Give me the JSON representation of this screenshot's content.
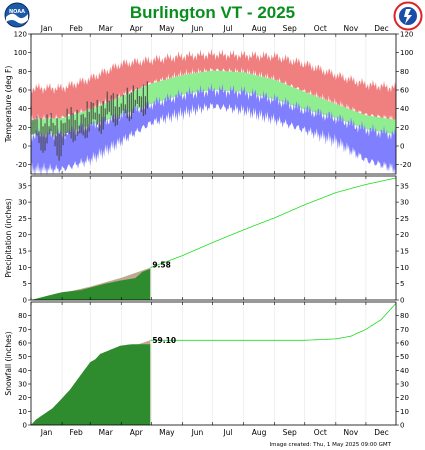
{
  "title": "Burlington VT - 2025",
  "footer": "Image created: Thu, 1 May 2025 09:00 GMT",
  "logos": [
    {
      "name": "noaa-logo",
      "text": "NOAA"
    },
    {
      "name": "nws-logo",
      "text": "NATIONAL WEATHER SERVICE"
    }
  ],
  "colors": {
    "record_high_band": "#f08080",
    "normal_band": "#90ee90",
    "record_low_band": "#8080ff",
    "observed": "#404040",
    "observed_total": "#2e8b2e",
    "normal_accum": "#c0a890",
    "normal_accum_line": "#22dd22",
    "title": "#0a8f1f"
  },
  "months": [
    "Jan",
    "Feb",
    "Mar",
    "Apr",
    "May",
    "Jun",
    "Jul",
    "Aug",
    "Sep",
    "Oct",
    "Nov",
    "Dec"
  ],
  "chart_data": [
    {
      "type": "area",
      "panel": "temperature",
      "ylabel": "Temperature (deg F)",
      "ylim": [
        -30,
        120
      ],
      "yticks": [
        -20,
        0,
        20,
        40,
        60,
        80,
        100,
        120
      ],
      "series": [
        {
          "name": "Record high",
          "x_day": [
            1,
            32,
            60,
            91,
            121,
            152,
            182,
            213,
            244,
            274,
            305,
            335,
            365
          ],
          "values": [
            62,
            62,
            72,
            88,
            92,
            96,
            98,
            97,
            96,
            88,
            76,
            66,
            62
          ]
        },
        {
          "name": "Normal high",
          "x_day": [
            1,
            32,
            60,
            91,
            121,
            152,
            182,
            213,
            244,
            274,
            305,
            335,
            365
          ],
          "values": [
            28,
            30,
            39,
            53,
            67,
            76,
            81,
            79,
            71,
            58,
            45,
            33,
            28
          ]
        },
        {
          "name": "Normal low",
          "x_day": [
            1,
            32,
            60,
            91,
            121,
            152,
            182,
            213,
            244,
            274,
            305,
            335,
            365
          ],
          "values": [
            12,
            13,
            22,
            33,
            45,
            55,
            60,
            58,
            50,
            39,
            30,
            18,
            12
          ]
        },
        {
          "name": "Record low",
          "x_day": [
            1,
            32,
            60,
            91,
            121,
            152,
            182,
            213,
            244,
            274,
            305,
            335,
            365
          ],
          "values": [
            -25,
            -25,
            -15,
            5,
            25,
            35,
            43,
            38,
            28,
            17,
            5,
            -15,
            -25
          ]
        },
        {
          "name": "Observed high",
          "x_day": [
            1,
            10,
            20,
            30,
            40,
            50,
            60,
            70,
            80,
            90,
            100,
            110,
            118
          ],
          "values": [
            35,
            22,
            30,
            20,
            38,
            28,
            45,
            40,
            55,
            45,
            60,
            55,
            65
          ]
        },
        {
          "name": "Observed low",
          "x_day": [
            1,
            10,
            20,
            30,
            40,
            50,
            60,
            70,
            80,
            90,
            100,
            110,
            118
          ],
          "values": [
            20,
            -5,
            10,
            -10,
            15,
            5,
            22,
            20,
            30,
            28,
            35,
            38,
            42
          ]
        }
      ]
    },
    {
      "type": "area",
      "panel": "precipitation",
      "ylabel": "Precipitation (inches)",
      "ylim": [
        0,
        38
      ],
      "yticks": [
        0,
        5,
        10,
        15,
        20,
        25,
        30,
        35
      ],
      "series": [
        {
          "name": "Normal",
          "x_day": [
            1,
            32,
            60,
            91,
            120,
            152,
            182,
            213,
            244,
            274,
            305,
            335,
            365
          ],
          "values": [
            0,
            2.1,
            4.1,
            6.8,
            9.9,
            13.6,
            17.6,
            21.5,
            25.2,
            29.2,
            32.9,
            35.4,
            37.4
          ]
        },
        {
          "name": "Observed",
          "x_day": [
            1,
            20,
            32,
            50,
            60,
            75,
            91,
            105,
            112,
            120
          ],
          "values": [
            0,
            1.5,
            2.4,
            3.0,
            3.8,
            5.0,
            6.0,
            6.7,
            8.6,
            9.58
          ]
        }
      ],
      "annotation": "9.58"
    },
    {
      "type": "area",
      "panel": "snowfall",
      "ylabel": "Snowfall (inches)",
      "ylim": [
        0,
        90
      ],
      "yticks": [
        0,
        10,
        20,
        30,
        40,
        50,
        60,
        70,
        80
      ],
      "series": [
        {
          "name": "Normal",
          "x_day": [
            1,
            32,
            60,
            91,
            120,
            152,
            182,
            213,
            244,
            274,
            305,
            320,
            335,
            350,
            365
          ],
          "values": [
            0,
            17,
            35,
            55,
            62,
            62,
            62,
            62,
            62,
            62,
            63,
            65,
            70,
            77,
            89
          ]
        },
        {
          "name": "Observed",
          "x_day": [
            1,
            6,
            12,
            18,
            22,
            30,
            40,
            50,
            55,
            60,
            65,
            70,
            80,
            90,
            100,
            110,
            120
          ],
          "values": [
            0,
            4,
            7,
            10,
            12,
            18,
            26,
            36,
            41,
            46,
            48,
            52,
            55,
            58,
            59,
            59.1,
            59.1
          ]
        }
      ],
      "annotation": "59.10"
    }
  ]
}
